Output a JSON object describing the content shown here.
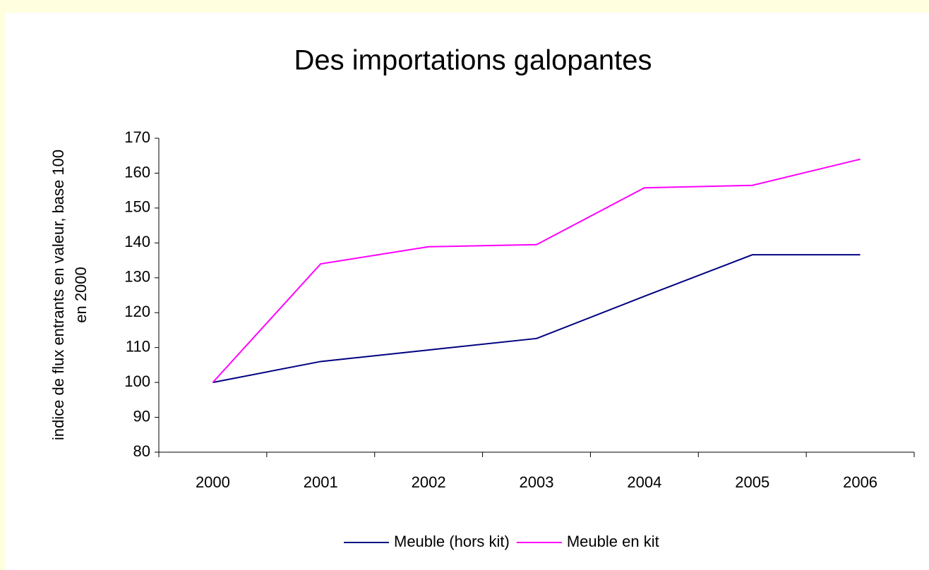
{
  "chart_data": {
    "type": "line",
    "title": "Des importations galopantes",
    "y_label": [
      "indice de flux entrants en valeur, base 100",
      "en 2000"
    ],
    "categories": [
      "2000",
      "2001",
      "2002",
      "2003",
      "2004",
      "2005",
      "2006"
    ],
    "series": [
      {
        "name": "Meuble (hors kit)",
        "color": "#000080",
        "values": [
          100,
          106,
          109.3,
          112.6,
          124.7,
          136.6,
          136.6
        ]
      },
      {
        "name": "Meuble en kit",
        "color": "#ff00ff",
        "values": [
          100,
          134,
          138.9,
          139.5,
          155.8,
          156.5,
          164
        ]
      }
    ],
    "ylim": [
      80,
      170
    ],
    "yticks": [
      80,
      90,
      100,
      110,
      120,
      130,
      140,
      150,
      160,
      170
    ],
    "grid": false,
    "legend": "bottom"
  }
}
